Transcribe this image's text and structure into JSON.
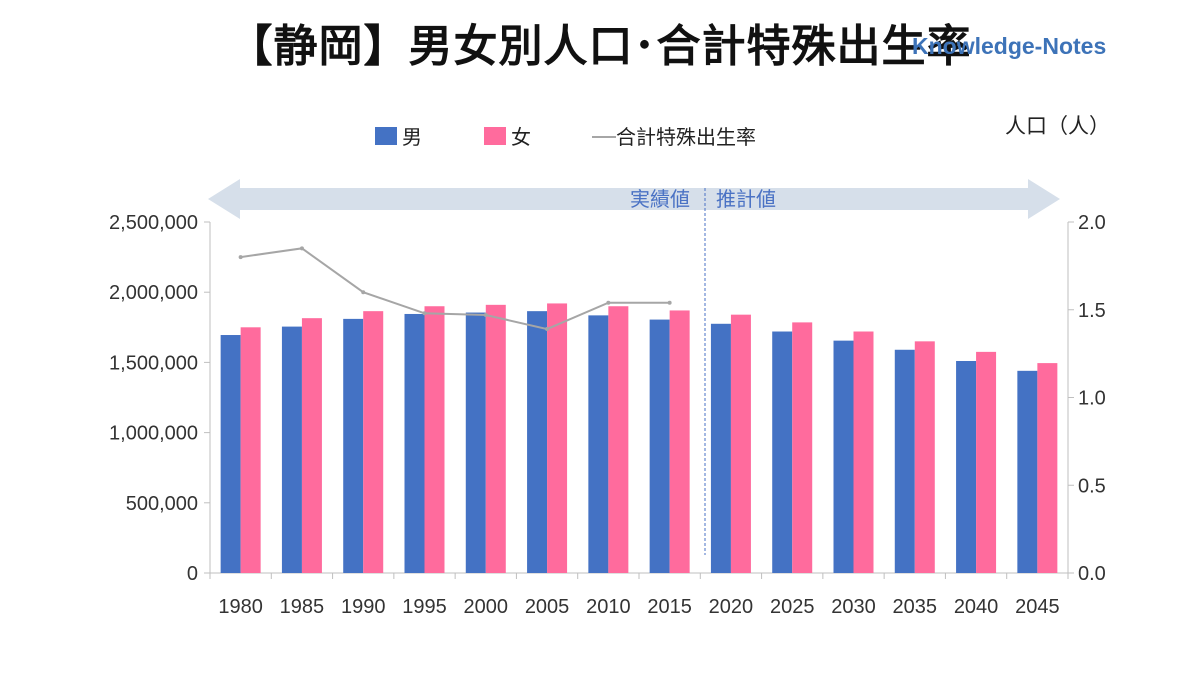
{
  "title": "【静岡】男女別人口･合計特殊出生率",
  "watermark": "Knowledge-Notes",
  "unit_label": "人口（人）",
  "arrow_labels": {
    "actual": "実績値",
    "projection": "推計値"
  },
  "colors": {
    "male": "#4472c4",
    "female": "#ff6b9d",
    "tfr": "#a6a6a6",
    "arrow": "#d6dfea",
    "axis": "#bfbfbf"
  },
  "chart_data": {
    "type": "bar",
    "title": "【静岡】男女別人口･合計特殊出生率",
    "categories": [
      "1980",
      "1985",
      "1990",
      "1995",
      "2000",
      "2005",
      "2010",
      "2015",
      "2020",
      "2025",
      "2030",
      "2035",
      "2040",
      "2045"
    ],
    "series": [
      {
        "name": "男",
        "axis": "left",
        "type": "bar",
        "values": [
          1695000,
          1755000,
          1810000,
          1845000,
          1855000,
          1865000,
          1835000,
          1805000,
          1775000,
          1720000,
          1655000,
          1590000,
          1510000,
          1440000
        ]
      },
      {
        "name": "女",
        "axis": "left",
        "type": "bar",
        "values": [
          1750000,
          1815000,
          1865000,
          1900000,
          1910000,
          1920000,
          1900000,
          1870000,
          1840000,
          1785000,
          1720000,
          1650000,
          1575000,
          1495000
        ]
      },
      {
        "name": "合計特殊出生率",
        "axis": "right",
        "type": "line",
        "values": [
          1.8,
          1.85,
          1.6,
          1.48,
          1.47,
          1.39,
          1.54,
          1.54,
          null,
          null,
          null,
          null,
          null,
          null
        ]
      }
    ],
    "y_left": {
      "min": 0,
      "max": 2500000,
      "ticks": [
        "0",
        "500,000",
        "1,000,000",
        "1,500,000",
        "2,000,000",
        "2,500,000"
      ]
    },
    "y_right": {
      "min": 0,
      "max": 2.0,
      "ticks": [
        "0.0",
        "0.5",
        "1.0",
        "1.5",
        "2.0"
      ]
    },
    "legend_placement": "top",
    "grid": false
  }
}
